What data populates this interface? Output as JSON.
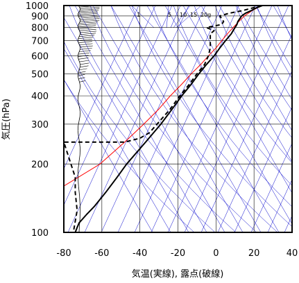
{
  "chart_data": {
    "type": "line",
    "title": "",
    "xlabel": "気温(実線), 露点(破線)",
    "ylabel": "気圧(hPa)",
    "xlim": [
      -80,
      40
    ],
    "ylim": [
      1000,
      100
    ],
    "yscale": "log",
    "x_ticks": [
      -80,
      -60,
      -40,
      -20,
      0,
      20,
      40
    ],
    "x_tick_labels": [
      "-80",
      "-60",
      "-40",
      "-20",
      "0",
      "20",
      "40"
    ],
    "y_ticks": [
      100,
      200,
      300,
      400,
      500,
      600,
      700,
      800,
      900,
      1000
    ],
    "y_tick_labels": [
      "100",
      "200",
      "300",
      "400",
      "500",
      "600",
      "700",
      "800",
      "900",
      "1000"
    ],
    "grid": true,
    "mixing_ratio_labels": [
      "1",
      "5",
      "10",
      "15",
      "20g"
    ],
    "colors": {
      "temperature": "#000000",
      "dewpoint": "#000000",
      "reference": "#ff0000",
      "background_lines": "#0000cc",
      "grid": "#000000"
    },
    "series": [
      {
        "key": "temperature",
        "style": "solid",
        "points": [
          {
            "p": 1000,
            "t": 24.5
          },
          {
            "p": 975,
            "t": 21
          },
          {
            "p": 950,
            "t": 18.5
          },
          {
            "p": 925,
            "t": 15.5
          },
          {
            "p": 900,
            "t": 13.5
          },
          {
            "p": 875,
            "t": 12.5
          },
          {
            "p": 850,
            "t": 11.5
          },
          {
            "p": 825,
            "t": 11
          },
          {
            "p": 800,
            "t": 10
          },
          {
            "p": 775,
            "t": 9
          },
          {
            "p": 750,
            "t": 8
          },
          {
            "p": 700,
            "t": 5
          },
          {
            "p": 650,
            "t": 2
          },
          {
            "p": 600,
            "t": -1
          },
          {
            "p": 550,
            "t": -5
          },
          {
            "p": 500,
            "t": -9
          },
          {
            "p": 450,
            "t": -13
          },
          {
            "p": 400,
            "t": -18
          },
          {
            "p": 350,
            "t": -23
          },
          {
            "p": 300,
            "t": -29
          },
          {
            "p": 250,
            "t": -37
          },
          {
            "p": 200,
            "t": -47
          },
          {
            "p": 175,
            "t": -52
          },
          {
            "p": 150,
            "t": -58
          },
          {
            "p": 130,
            "t": -64
          },
          {
            "p": 120,
            "t": -68
          },
          {
            "p": 110,
            "t": -72
          },
          {
            "p": 105,
            "t": -73
          },
          {
            "p": 100,
            "t": -74
          }
        ]
      },
      {
        "key": "dewpoint",
        "style": "dashed",
        "points": [
          {
            "p": 1000,
            "t": 24
          },
          {
            "p": 975,
            "t": 19
          },
          {
            "p": 950,
            "t": 14
          },
          {
            "p": 925,
            "t": 7
          },
          {
            "p": 900,
            "t": 2
          },
          {
            "p": 875,
            "t": 3
          },
          {
            "p": 850,
            "t": 4
          },
          {
            "p": 825,
            "t": 3
          },
          {
            "p": 800,
            "t": -5
          },
          {
            "p": 775,
            "t": -1
          },
          {
            "p": 750,
            "t": -3
          },
          {
            "p": 700,
            "t": -3
          },
          {
            "p": 650,
            "t": -3
          },
          {
            "p": 600,
            "t": -4
          },
          {
            "p": 550,
            "t": -6
          },
          {
            "p": 500,
            "t": -10
          },
          {
            "p": 450,
            "t": -14
          },
          {
            "p": 400,
            "t": -19
          },
          {
            "p": 350,
            "t": -24
          },
          {
            "p": 300,
            "t": -31
          },
          {
            "p": 275,
            "t": -35
          },
          {
            "p": 260,
            "t": -40
          },
          {
            "p": 250,
            "t": -48
          },
          {
            "p": 250,
            "t": -80
          },
          {
            "p": 175,
            "t": -74
          },
          {
            "p": 150,
            "t": -74
          },
          {
            "p": 125,
            "t": -73
          },
          {
            "p": 100,
            "t": -75
          }
        ]
      },
      {
        "key": "reference",
        "style": "solid",
        "points": [
          {
            "p": 1000,
            "t": 24
          },
          {
            "p": 950,
            "t": 19
          },
          {
            "p": 900,
            "t": 15
          },
          {
            "p": 850,
            "t": 12
          },
          {
            "p": 800,
            "t": 9
          },
          {
            "p": 750,
            "t": 6
          },
          {
            "p": 700,
            "t": 3
          },
          {
            "p": 650,
            "t": 0
          },
          {
            "p": 600,
            "t": -4
          },
          {
            "p": 550,
            "t": -8
          },
          {
            "p": 500,
            "t": -13
          },
          {
            "p": 450,
            "t": -18
          },
          {
            "p": 400,
            "t": -24
          },
          {
            "p": 350,
            "t": -30
          },
          {
            "p": 300,
            "t": -38
          },
          {
            "p": 250,
            "t": -48
          },
          {
            "p": 200,
            "t": -61
          },
          {
            "p": 160,
            "t": -80
          }
        ]
      }
    ]
  }
}
